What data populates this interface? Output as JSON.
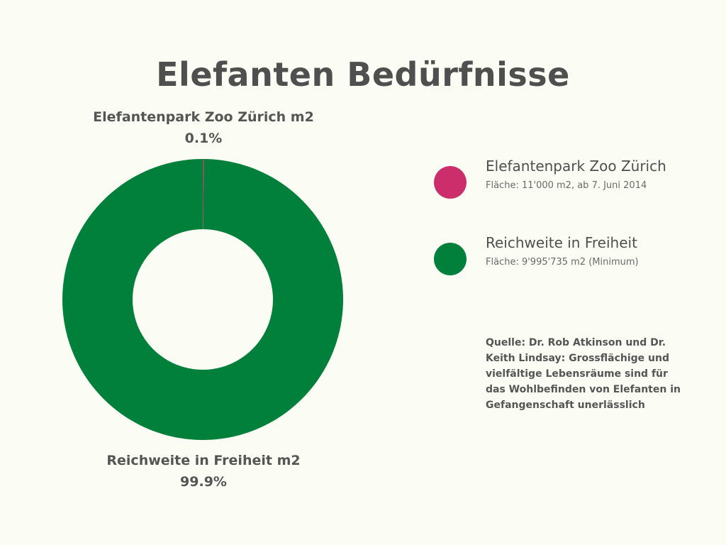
{
  "title": "Elefanten Bedürfnisse",
  "colors": {
    "zoo": "#cc2e6b",
    "freiheit": "#00803a",
    "background": "#fbfcf3"
  },
  "slice_labels": {
    "zoo": {
      "name": "Elefantenpark Zoo Zürich m2",
      "percent": "0.1%"
    },
    "freiheit": {
      "name": "Reichweite in Freiheit m2",
      "percent": "99.9%"
    }
  },
  "legend": [
    {
      "name": "Elefantenpark Zoo Zürich",
      "desc": "Fläche: 11'000 m2, ab 7. Juni 2014",
      "color": "#cc2e6b"
    },
    {
      "name": "Reichweite in Freiheit",
      "desc": "Fläche: 9'995'735 m2 (Minimum)",
      "color": "#00803a"
    }
  ],
  "source": "Quelle: Dr. Rob Atkinson und Dr. Keith Lindsay: Grossflächige und vielfältige Lebensräume sind für das Wohlbefinden von Elefanten in Gefangenschaft unerlässlich",
  "chart_data": {
    "type": "pie",
    "variant": "donut",
    "title": "Elefanten Bedürfnisse",
    "categories": [
      "Elefantenpark Zoo Zürich m2",
      "Reichweite in Freiheit m2"
    ],
    "values": [
      11000,
      9995735
    ],
    "percent_labels": [
      "0.1%",
      "99.9%"
    ],
    "colors": [
      "#cc2e6b",
      "#00803a"
    ],
    "legend_position": "right"
  }
}
